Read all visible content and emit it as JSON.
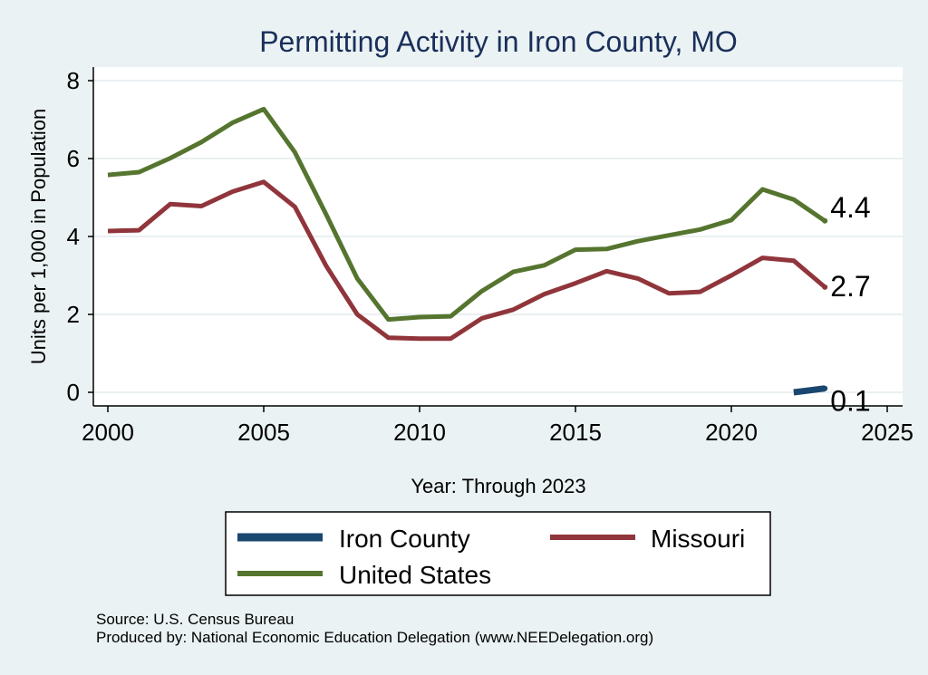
{
  "chart_data": {
    "type": "line",
    "title": "Permitting Activity in Iron County, MO",
    "xlabel": "Year: Through 2023",
    "ylabel": "Units per 1,000 in Population",
    "xlim": [
      2000,
      2025
    ],
    "ylim": [
      0,
      8
    ],
    "xticks": [
      2000,
      2005,
      2010,
      2015,
      2020,
      2025
    ],
    "yticks": [
      0,
      2,
      4,
      6,
      8
    ],
    "grid": true,
    "series": [
      {
        "name": "Iron County",
        "color": "#1a476f",
        "x": [
          2022,
          2023
        ],
        "values": [
          0.0,
          0.1
        ],
        "end_label": "0.1"
      },
      {
        "name": "Missouri",
        "color": "#90353b",
        "x": [
          2000,
          2001,
          2002,
          2003,
          2004,
          2005,
          2006,
          2007,
          2008,
          2009,
          2010,
          2011,
          2012,
          2013,
          2014,
          2015,
          2016,
          2017,
          2018,
          2019,
          2020,
          2021,
          2022,
          2023
        ],
        "values": [
          4.14,
          4.16,
          4.83,
          4.78,
          5.15,
          5.4,
          4.76,
          3.25,
          2.0,
          1.4,
          1.38,
          1.38,
          1.9,
          2.12,
          2.52,
          2.8,
          3.11,
          2.92,
          2.54,
          2.58,
          3.0,
          3.45,
          3.38,
          2.7
        ],
        "end_label": "2.7"
      },
      {
        "name": "United States",
        "color": "#55752f",
        "x": [
          2000,
          2001,
          2002,
          2003,
          2004,
          2005,
          2006,
          2007,
          2008,
          2009,
          2010,
          2011,
          2012,
          2013,
          2014,
          2015,
          2016,
          2017,
          2018,
          2019,
          2020,
          2021,
          2022,
          2023
        ],
        "values": [
          5.58,
          5.65,
          6.01,
          6.42,
          6.92,
          7.27,
          6.16,
          4.57,
          2.92,
          1.87,
          1.93,
          1.95,
          2.6,
          3.09,
          3.26,
          3.66,
          3.68,
          3.88,
          4.03,
          4.18,
          4.42,
          5.21,
          4.95,
          4.4
        ],
        "end_label": "4.4"
      }
    ],
    "legend_order": [
      "Iron County",
      "Missouri",
      "United States"
    ],
    "legend_position": "bottom"
  },
  "footer": {
    "source": "Source: U.S. Census Bureau",
    "produced_by": "Produced by: National Economic Education Delegation (www.NEEDelegation.org)"
  }
}
